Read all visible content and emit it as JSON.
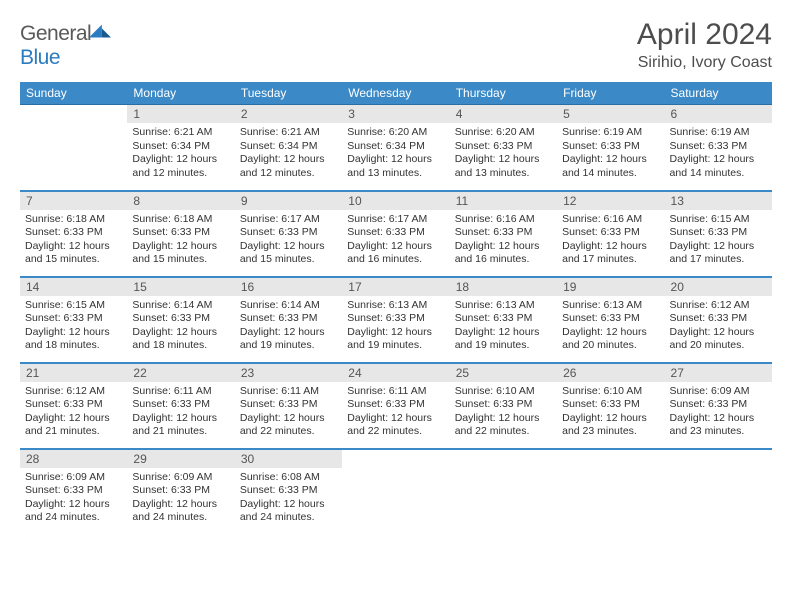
{
  "logo": {
    "word1": "General",
    "word2": "Blue"
  },
  "title": "April 2024",
  "location": "Sirihio, Ivory Coast",
  "style": {
    "header_bg": "#3b89c7",
    "header_fg": "#ffffff",
    "row_border": "#3b89c7",
    "daynum_bg": "#e7e7e7",
    "daynum_fg": "#555555",
    "text_color": "#333333",
    "logo_gray": "#5a5a5a",
    "logo_blue": "#2b7cc0"
  },
  "dayNames": [
    "Sunday",
    "Monday",
    "Tuesday",
    "Wednesday",
    "Thursday",
    "Friday",
    "Saturday"
  ],
  "weeks": [
    [
      {
        "n": "",
        "sr": "",
        "ss": "",
        "dl": ""
      },
      {
        "n": "1",
        "sr": "Sunrise: 6:21 AM",
        "ss": "Sunset: 6:34 PM",
        "dl": "Daylight: 12 hours and 12 minutes."
      },
      {
        "n": "2",
        "sr": "Sunrise: 6:21 AM",
        "ss": "Sunset: 6:34 PM",
        "dl": "Daylight: 12 hours and 12 minutes."
      },
      {
        "n": "3",
        "sr": "Sunrise: 6:20 AM",
        "ss": "Sunset: 6:34 PM",
        "dl": "Daylight: 12 hours and 13 minutes."
      },
      {
        "n": "4",
        "sr": "Sunrise: 6:20 AM",
        "ss": "Sunset: 6:33 PM",
        "dl": "Daylight: 12 hours and 13 minutes."
      },
      {
        "n": "5",
        "sr": "Sunrise: 6:19 AM",
        "ss": "Sunset: 6:33 PM",
        "dl": "Daylight: 12 hours and 14 minutes."
      },
      {
        "n": "6",
        "sr": "Sunrise: 6:19 AM",
        "ss": "Sunset: 6:33 PM",
        "dl": "Daylight: 12 hours and 14 minutes."
      }
    ],
    [
      {
        "n": "7",
        "sr": "Sunrise: 6:18 AM",
        "ss": "Sunset: 6:33 PM",
        "dl": "Daylight: 12 hours and 15 minutes."
      },
      {
        "n": "8",
        "sr": "Sunrise: 6:18 AM",
        "ss": "Sunset: 6:33 PM",
        "dl": "Daylight: 12 hours and 15 minutes."
      },
      {
        "n": "9",
        "sr": "Sunrise: 6:17 AM",
        "ss": "Sunset: 6:33 PM",
        "dl": "Daylight: 12 hours and 15 minutes."
      },
      {
        "n": "10",
        "sr": "Sunrise: 6:17 AM",
        "ss": "Sunset: 6:33 PM",
        "dl": "Daylight: 12 hours and 16 minutes."
      },
      {
        "n": "11",
        "sr": "Sunrise: 6:16 AM",
        "ss": "Sunset: 6:33 PM",
        "dl": "Daylight: 12 hours and 16 minutes."
      },
      {
        "n": "12",
        "sr": "Sunrise: 6:16 AM",
        "ss": "Sunset: 6:33 PM",
        "dl": "Daylight: 12 hours and 17 minutes."
      },
      {
        "n": "13",
        "sr": "Sunrise: 6:15 AM",
        "ss": "Sunset: 6:33 PM",
        "dl": "Daylight: 12 hours and 17 minutes."
      }
    ],
    [
      {
        "n": "14",
        "sr": "Sunrise: 6:15 AM",
        "ss": "Sunset: 6:33 PM",
        "dl": "Daylight: 12 hours and 18 minutes."
      },
      {
        "n": "15",
        "sr": "Sunrise: 6:14 AM",
        "ss": "Sunset: 6:33 PM",
        "dl": "Daylight: 12 hours and 18 minutes."
      },
      {
        "n": "16",
        "sr": "Sunrise: 6:14 AM",
        "ss": "Sunset: 6:33 PM",
        "dl": "Daylight: 12 hours and 19 minutes."
      },
      {
        "n": "17",
        "sr": "Sunrise: 6:13 AM",
        "ss": "Sunset: 6:33 PM",
        "dl": "Daylight: 12 hours and 19 minutes."
      },
      {
        "n": "18",
        "sr": "Sunrise: 6:13 AM",
        "ss": "Sunset: 6:33 PM",
        "dl": "Daylight: 12 hours and 19 minutes."
      },
      {
        "n": "19",
        "sr": "Sunrise: 6:13 AM",
        "ss": "Sunset: 6:33 PM",
        "dl": "Daylight: 12 hours and 20 minutes."
      },
      {
        "n": "20",
        "sr": "Sunrise: 6:12 AM",
        "ss": "Sunset: 6:33 PM",
        "dl": "Daylight: 12 hours and 20 minutes."
      }
    ],
    [
      {
        "n": "21",
        "sr": "Sunrise: 6:12 AM",
        "ss": "Sunset: 6:33 PM",
        "dl": "Daylight: 12 hours and 21 minutes."
      },
      {
        "n": "22",
        "sr": "Sunrise: 6:11 AM",
        "ss": "Sunset: 6:33 PM",
        "dl": "Daylight: 12 hours and 21 minutes."
      },
      {
        "n": "23",
        "sr": "Sunrise: 6:11 AM",
        "ss": "Sunset: 6:33 PM",
        "dl": "Daylight: 12 hours and 22 minutes."
      },
      {
        "n": "24",
        "sr": "Sunrise: 6:11 AM",
        "ss": "Sunset: 6:33 PM",
        "dl": "Daylight: 12 hours and 22 minutes."
      },
      {
        "n": "25",
        "sr": "Sunrise: 6:10 AM",
        "ss": "Sunset: 6:33 PM",
        "dl": "Daylight: 12 hours and 22 minutes."
      },
      {
        "n": "26",
        "sr": "Sunrise: 6:10 AM",
        "ss": "Sunset: 6:33 PM",
        "dl": "Daylight: 12 hours and 23 minutes."
      },
      {
        "n": "27",
        "sr": "Sunrise: 6:09 AM",
        "ss": "Sunset: 6:33 PM",
        "dl": "Daylight: 12 hours and 23 minutes."
      }
    ],
    [
      {
        "n": "28",
        "sr": "Sunrise: 6:09 AM",
        "ss": "Sunset: 6:33 PM",
        "dl": "Daylight: 12 hours and 24 minutes."
      },
      {
        "n": "29",
        "sr": "Sunrise: 6:09 AM",
        "ss": "Sunset: 6:33 PM",
        "dl": "Daylight: 12 hours and 24 minutes."
      },
      {
        "n": "30",
        "sr": "Sunrise: 6:08 AM",
        "ss": "Sunset: 6:33 PM",
        "dl": "Daylight: 12 hours and 24 minutes."
      },
      {
        "n": "",
        "sr": "",
        "ss": "",
        "dl": ""
      },
      {
        "n": "",
        "sr": "",
        "ss": "",
        "dl": ""
      },
      {
        "n": "",
        "sr": "",
        "ss": "",
        "dl": ""
      },
      {
        "n": "",
        "sr": "",
        "ss": "",
        "dl": ""
      }
    ]
  ]
}
